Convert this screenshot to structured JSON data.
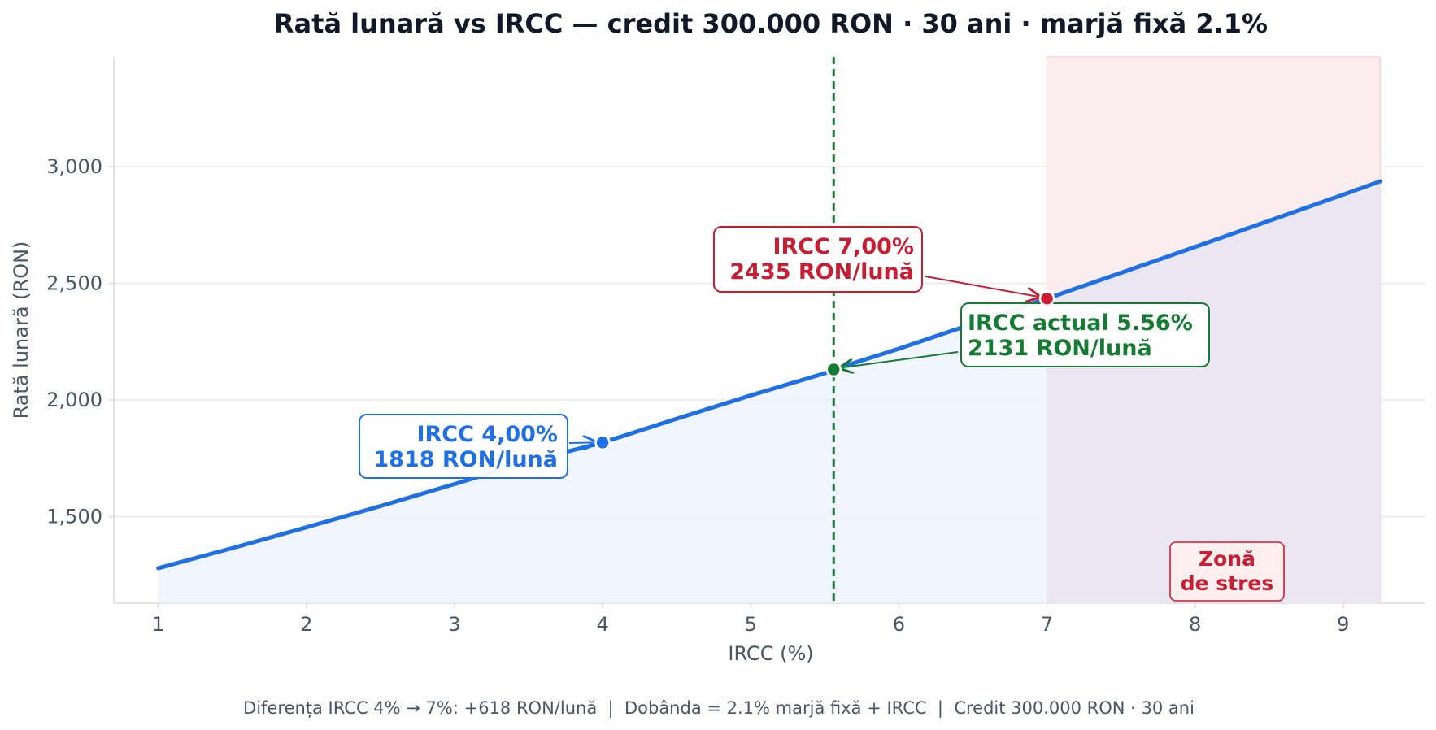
{
  "chart_data": {
    "type": "line",
    "title": "Rată lunară vs IRCC — credit 300.000 RON · 30 ani · marjă fixă 2.1%",
    "xlabel": "IRCC (%)",
    "ylabel": "Rată lunară (RON)",
    "xlim": [
      0.7,
      9.55
    ],
    "ylim": [
      1130,
      3470
    ],
    "x_ticks": [
      1,
      2,
      3,
      4,
      5,
      6,
      7,
      8,
      9
    ],
    "y_ticks": [
      1500,
      2000,
      2500,
      3000
    ],
    "y_tick_labels": [
      "1,500",
      "2,000",
      "2,500",
      "3,000"
    ],
    "grid": "horizontal",
    "series": [
      {
        "x": [
          1.0,
          1.5,
          2.0,
          2.5,
          3.0,
          3.5,
          4.0,
          4.5,
          5.0,
          5.5,
          5.56,
          6.0,
          6.5,
          7.0,
          7.5,
          8.0,
          8.5,
          9.0,
          9.25
        ],
        "values": [
          1280,
          1366,
          1455,
          1546,
          1640,
          1737,
          1818,
          1920,
          2020,
          2115,
          2131,
          2220,
          2327,
          2435,
          2545,
          2656,
          2768,
          2880,
          2937
        ]
      }
    ],
    "current_marker": {
      "x": 5.56
    },
    "stress_zone": {
      "x_start": 7.0,
      "x_end": 9.25,
      "label_line1": "Zonă",
      "label_line2": "de stres"
    },
    "annotations": [
      {
        "id": "ircc-4",
        "x": 4.0,
        "y": 1818,
        "line1": "IRCC 4,00%",
        "line2": "1818 RON/lună",
        "color": "#1f6fe5"
      },
      {
        "id": "ircc-current",
        "x": 5.56,
        "y": 2131,
        "line1": "IRCC actual 5.56%",
        "line2": "2131 RON/lună",
        "color": "#157a32"
      },
      {
        "id": "ircc-7",
        "x": 7.0,
        "y": 2435,
        "line1": "IRCC 7,00%",
        "line2": "2435 RON/lună",
        "color": "#c81e33"
      }
    ],
    "footer": "Diferența IRCC 4% → 7%: +618 RON/lună  |  Dobânda = 2.1% marjă fixă + IRCC  |  Credit 300.000 RON · 30 ani",
    "colors": {
      "line": "#1f6fe5",
      "fill": "#eef3fc",
      "current": "#157a32",
      "stress": "#c81e33",
      "stress_fill": "#fbecee",
      "grid": "#e5e7eb",
      "axis": "#d1d5db",
      "text": "#4b5563",
      "title": "#111827"
    }
  }
}
